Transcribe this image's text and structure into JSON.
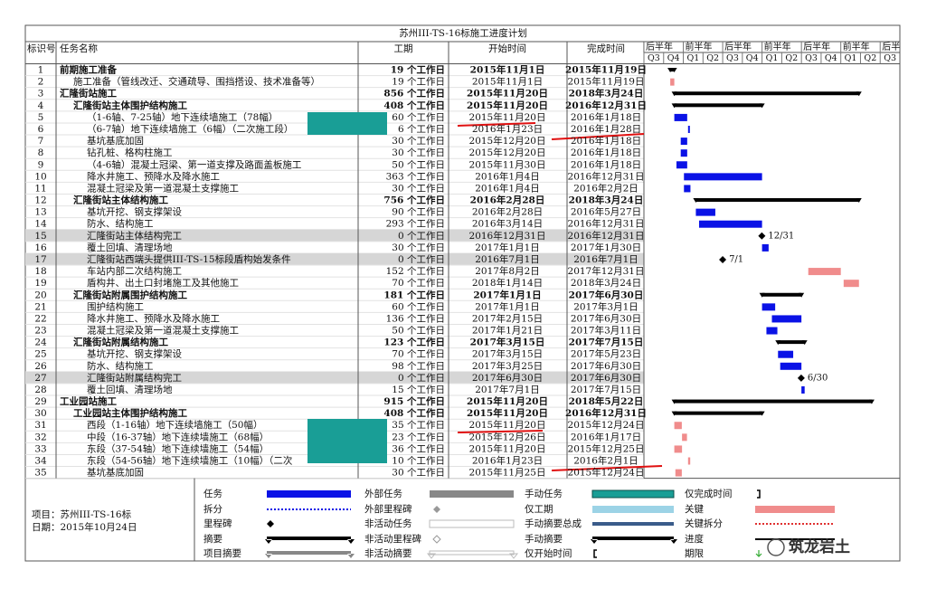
{
  "title": "苏州III-TS-16标施工进度计划",
  "columns": [
    "标识号",
    "任务名称",
    "工期",
    "开始时间",
    "完成时间"
  ],
  "timescale": {
    "halves": [
      "后半年",
      "前半年",
      "后半年",
      "前半年",
      "后半年",
      "前半年",
      "后半年"
    ],
    "quarters": [
      "Q3",
      "Q4",
      "Q1",
      "Q2",
      "Q3",
      "Q4",
      "Q1",
      "Q2",
      "Q3",
      "Q4",
      "Q1",
      "Q2",
      "Q3"
    ]
  },
  "rows": [
    {
      "id": "1",
      "name": "前期施工准备",
      "duration": "19 个工作日",
      "start": "2015年11月1日",
      "finish": "2015年11月19日",
      "level": 0,
      "summary": true
    },
    {
      "id": "2",
      "name": "施工准备（管线改迁、交通疏导、围挡搭设、技术准备等）",
      "duration": "19 个工作日",
      "start": "2015年11月1日",
      "finish": "2015年11月19日",
      "level": 1,
      "critical": true
    },
    {
      "id": "3",
      "name": "汇隆街站施工",
      "duration": "856 个工作日",
      "start": "2015年11月20日",
      "finish": "2018年3月24日",
      "level": 0,
      "summary": true
    },
    {
      "id": "4",
      "name": "汇隆街站主体围护结构施工",
      "duration": "408 个工作日",
      "start": "2015年11月20日",
      "finish": "2016年12月31日",
      "level": 1,
      "summary": true
    },
    {
      "id": "5",
      "name": "（1-6轴、7-25轴）地下连续墙施工（78幅）",
      "duration": "60 个工作日",
      "start": "2015年11月20日",
      "finish": "2016年1月18日",
      "level": 2
    },
    {
      "id": "6",
      "name": "（6-7轴）地下连续墙施工（6幅）（二次施工段）",
      "duration": "6 个工作日",
      "start": "2016年1月23日",
      "finish": "2016年1月28日",
      "level": 2
    },
    {
      "id": "7",
      "name": "基坑基底加固",
      "duration": "30 个工作日",
      "start": "2015年12月20日",
      "finish": "2016年1月18日",
      "level": 2
    },
    {
      "id": "8",
      "name": "钻孔桩、格构柱施工",
      "duration": "30 个工作日",
      "start": "2015年12月20日",
      "finish": "2016年1月18日",
      "level": 2
    },
    {
      "id": "9",
      "name": "（4-6轴）混凝土冠梁、第一道支撑及路面盖板施工",
      "duration": "50 个工作日",
      "start": "2015年11月30日",
      "finish": "2016年1月18日",
      "level": 2
    },
    {
      "id": "10",
      "name": "降水井施工、预降水及降水施工",
      "duration": "363 个工作日",
      "start": "2016年1月4日",
      "finish": "2016年12月31日",
      "level": 2
    },
    {
      "id": "11",
      "name": "混凝土冠梁及第一道混凝土支撑施工",
      "duration": "30 个工作日",
      "start": "2016年1月4日",
      "finish": "2016年2月2日",
      "level": 2
    },
    {
      "id": "12",
      "name": "汇隆街站主体结构施工",
      "duration": "756 个工作日",
      "start": "2016年2月28日",
      "finish": "2018年3月24日",
      "level": 1,
      "summary": true
    },
    {
      "id": "13",
      "name": "基坑开挖、钢支撑架设",
      "duration": "90 个工作日",
      "start": "2016年2月28日",
      "finish": "2016年5月27日",
      "level": 2
    },
    {
      "id": "14",
      "name": "防水、结构施工",
      "duration": "293 个工作日",
      "start": "2016年3月14日",
      "finish": "2016年12月31日",
      "level": 2
    },
    {
      "id": "15",
      "name": "汇隆街站主体结构完工",
      "duration": "0 个工作日",
      "start": "2016年12月31日",
      "finish": "2016年12月31日",
      "level": 2,
      "milestone": true,
      "label": "12/31",
      "highlight": true
    },
    {
      "id": "16",
      "name": "覆土回填、清理场地",
      "duration": "30 个工作日",
      "start": "2017年1月1日",
      "finish": "2017年1月30日",
      "level": 2
    },
    {
      "id": "17",
      "name": "汇隆街站西端头提供III-TS-15标段盾构始发条件",
      "duration": "0 个工作日",
      "start": "2016年7月1日",
      "finish": "2016年7月1日",
      "level": 2,
      "milestone": true,
      "label": "7/1",
      "highlight": true
    },
    {
      "id": "18",
      "name": "车站内部二次结构施工",
      "duration": "152 个工作日",
      "start": "2017年8月2日",
      "finish": "2017年12月31日",
      "level": 2,
      "critical": true
    },
    {
      "id": "19",
      "name": "盾构井、出土口封堵施工及其他施工",
      "duration": "70 个工作日",
      "start": "2018年1月14日",
      "finish": "2018年3月24日",
      "level": 2,
      "critical": true
    },
    {
      "id": "20",
      "name": "汇隆街站附属围护结构施工",
      "duration": "181 个工作日",
      "start": "2017年1月1日",
      "finish": "2017年6月30日",
      "level": 1,
      "summary": true
    },
    {
      "id": "21",
      "name": "围护结构施工",
      "duration": "60 个工作日",
      "start": "2017年1月1日",
      "finish": "2017年3月1日",
      "level": 2
    },
    {
      "id": "22",
      "name": "降水井施工、预降水及降水施工",
      "duration": "136 个工作日",
      "start": "2017年2月15日",
      "finish": "2017年6月30日",
      "level": 2
    },
    {
      "id": "23",
      "name": "混凝土冠梁及第一道混凝土支撑施工",
      "duration": "50 个工作日",
      "start": "2017年1月21日",
      "finish": "2017年3月11日",
      "level": 2
    },
    {
      "id": "24",
      "name": "汇隆街站附属结构施工",
      "duration": "123 个工作日",
      "start": "2017年3月15日",
      "finish": "2017年7月15日",
      "level": 1,
      "summary": true
    },
    {
      "id": "25",
      "name": "基坑开挖、钢支撑架设",
      "duration": "70 个工作日",
      "start": "2017年3月15日",
      "finish": "2017年5月23日",
      "level": 2
    },
    {
      "id": "26",
      "name": "防水、结构施工",
      "duration": "98 个工作日",
      "start": "2017年3月25日",
      "finish": "2017年6月30日",
      "level": 2
    },
    {
      "id": "27",
      "name": "汇隆街站附属结构完工",
      "duration": "0 个工作日",
      "start": "2017年6月30日",
      "finish": "2017年6月30日",
      "level": 2,
      "milestone": true,
      "label": "6/30",
      "highlight": true
    },
    {
      "id": "28",
      "name": "覆土回填、清理场地",
      "duration": "15 个工作日",
      "start": "2017年7月1日",
      "finish": "2017年7月15日",
      "level": 2
    },
    {
      "id": "29",
      "name": "工业园站施工",
      "duration": "915 个工作日",
      "start": "2015年11月20日",
      "finish": "2018年5月22日",
      "level": 0,
      "summary": true
    },
    {
      "id": "30",
      "name": "工业园站主体围护结构施工",
      "duration": "408 个工作日",
      "start": "2015年11月20日",
      "finish": "2016年12月31日",
      "level": 1,
      "summary": true
    },
    {
      "id": "31",
      "name": "西段（1-16轴）地下连续墙施工（50幅）",
      "duration": "35 个工作日",
      "start": "2015年11月20日",
      "finish": "2015年12月24日",
      "level": 2,
      "critical": true
    },
    {
      "id": "32",
      "name": "中段（16-37轴）地下连续墙施工（68幅）",
      "duration": "23 个工作日",
      "start": "2015年12月26日",
      "finish": "2016年1月17日",
      "level": 2,
      "critical": true
    },
    {
      "id": "33",
      "name": "东段（37-54轴）地下连续墙施工（54幅）",
      "duration": "36 个工作日",
      "start": "2015年11月20日",
      "finish": "2015年12月25日",
      "level": 2,
      "critical": true
    },
    {
      "id": "34",
      "name": "东段（54-56轴）地下连续墙施工（10幅）（二次",
      "duration": "10 个工作日",
      "start": "2016年1月23日",
      "finish": "2016年2月1日",
      "level": 2,
      "critical": true
    },
    {
      "id": "35",
      "name": "基坑基底加固",
      "duration": "30 个工作日",
      "start": "2015年11月25日",
      "finish": "2015年12月24日",
      "level": 2,
      "critical": true
    }
  ],
  "project": [
    "项目：苏州III-TS-16标",
    "日期：2015年10月24日"
  ],
  "legend": [
    "任务",
    "拆分",
    "里程碑",
    "摘要",
    "项目摘要",
    "外部任务",
    "外部里程碑",
    "非活动任务",
    "非活动里程碑",
    "非活动摘要",
    "手动任务",
    "仅工期",
    "手动摘要总成",
    "手动摘要",
    "仅开始时间",
    "仅完成时间",
    "关键",
    "关键拆分",
    "进度",
    "期限"
  ],
  "watermark": "筑龙岩土"
}
